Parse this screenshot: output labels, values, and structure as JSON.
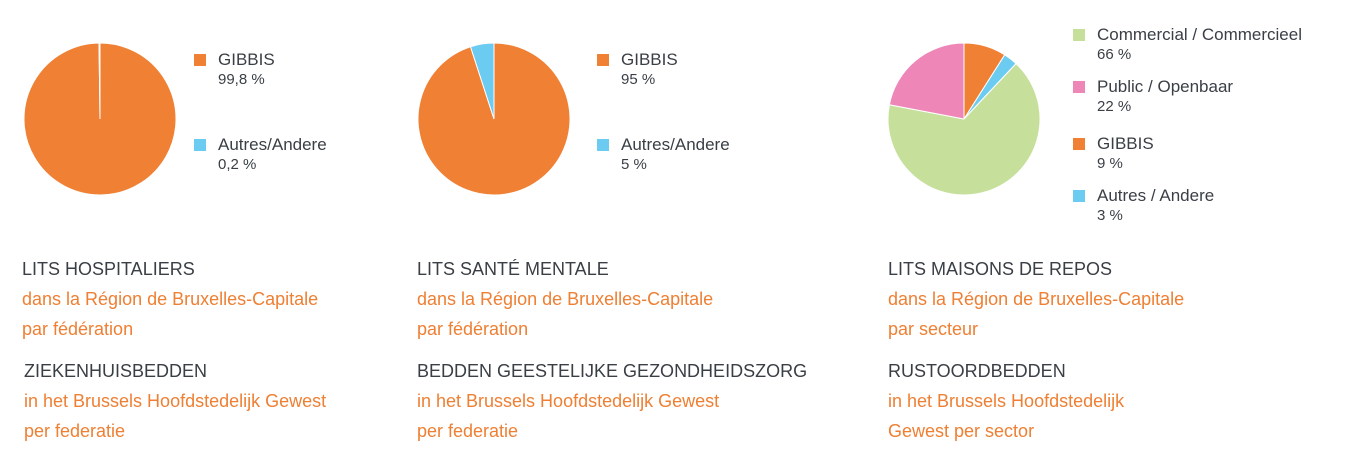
{
  "colors": {
    "gibbis": "#ef8034",
    "autres": "#6ccbf1",
    "commercial": "#c6e09c",
    "public": "#ee86b8",
    "text": "#3a3f45",
    "accent": "#ee7f33"
  },
  "chart_data": [
    {
      "type": "pie",
      "slices": [
        {
          "name": "GIBBIS",
          "value": 99.8,
          "label": "99,8 %",
          "color": "#ef8034"
        },
        {
          "name": "Autres/Andere",
          "value": 0.2,
          "label": "0,2 %",
          "color": "#6ccbf1"
        }
      ],
      "title_fr": "LITS HOSPITALIERS",
      "subtitle_fr_1": "dans la Région de Bruxelles-Capitale",
      "subtitle_fr_2": "par fédération",
      "title_nl": "ZIEKENHUISBEDDEN",
      "subtitle_nl_1": "in het Brussels Hoofdstedelijk Gewest",
      "subtitle_nl_2": "per federatie"
    },
    {
      "type": "pie",
      "slices": [
        {
          "name": "GIBBIS",
          "value": 95,
          "label": "95 %",
          "color": "#ef8034"
        },
        {
          "name": "Autres/Andere",
          "value": 5,
          "label": "5 %",
          "color": "#6ccbf1"
        }
      ],
      "title_fr": "LITS SANTÉ MENTALE",
      "subtitle_fr_1": "dans la Région de Bruxelles-Capitale",
      "subtitle_fr_2": "par fédération",
      "title_nl": "BEDDEN GEESTELIJKE GEZONDHEIDSZORG",
      "subtitle_nl_1": "in het Brussels Hoofdstedelijk Gewest",
      "subtitle_nl_2": "per federatie"
    },
    {
      "type": "pie",
      "slices": [
        {
          "name": "GIBBIS",
          "value": 9,
          "label": "9 %",
          "color": "#ef8034"
        },
        {
          "name": "Autres / Andere",
          "value": 3,
          "label": "3 %",
          "color": "#6ccbf1"
        },
        {
          "name": "Commercial / Commercieel",
          "value": 66,
          "label": "66 %",
          "color": "#c6e09c"
        },
        {
          "name": "Public / Openbaar",
          "value": 22,
          "label": "22 %",
          "color": "#ee86b8"
        }
      ],
      "legend_order": [
        2,
        3,
        0,
        1
      ],
      "title_fr": "LITS MAISONS DE REPOS",
      "subtitle_fr_1": "dans la Région de Bruxelles-Capitale",
      "subtitle_fr_2": "par secteur",
      "title_nl": "RUSTOORDBEDDEN",
      "subtitle_nl_1": "in het Brussels Hoofdstedelijk",
      "subtitle_nl_2": "Gewest per sector"
    }
  ]
}
